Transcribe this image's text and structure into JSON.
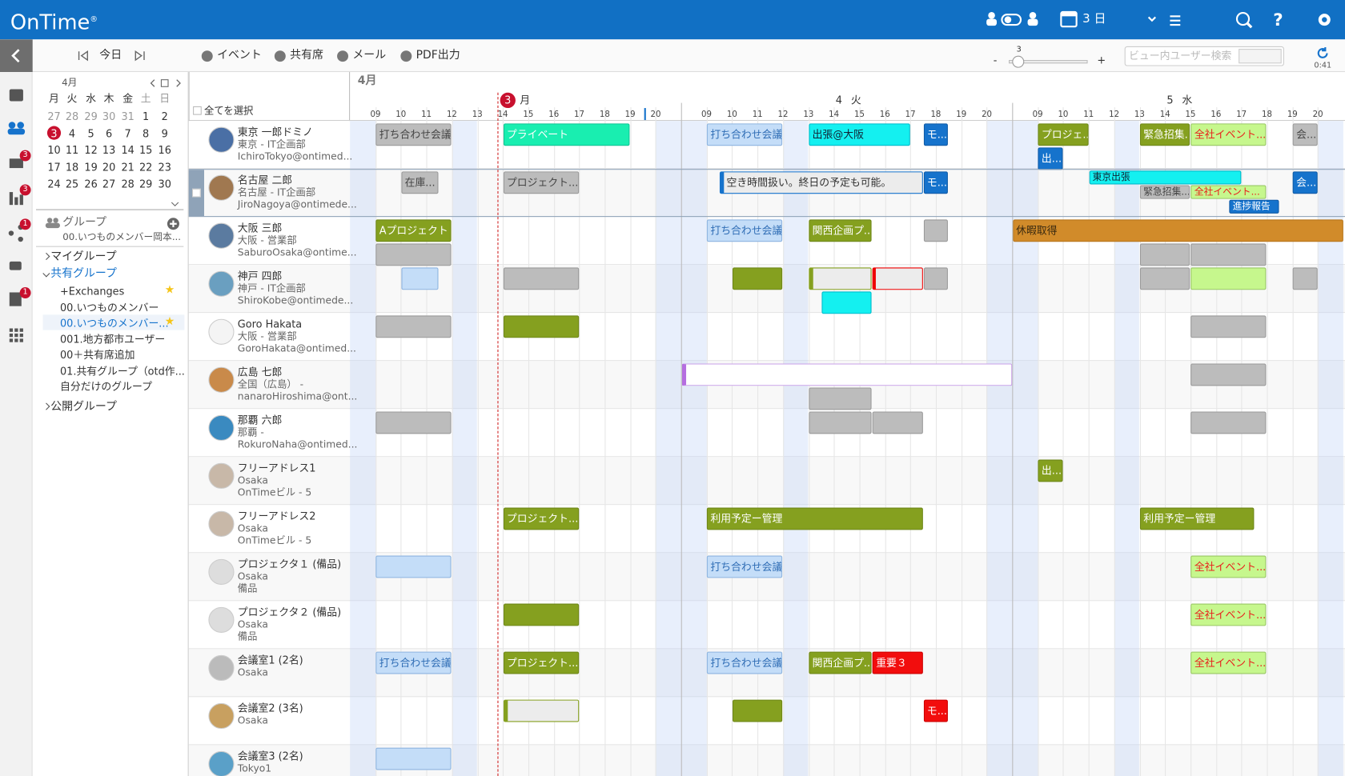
{
  "header": {
    "logo": "OnTime",
    "logo_mark": "®",
    "view": "3 日"
  },
  "toolbar": {
    "today": "今日",
    "buttons": [
      "イベント",
      "共有席",
      "メール",
      "PDF出力"
    ],
    "zoom": "3",
    "zoom_minus": "-",
    "zoom_plus": "+",
    "search_placeholder": "ビュー内ユーザー検索",
    "time": "0:41"
  },
  "rail_badges": [
    "3",
    "3",
    "1",
    "1"
  ],
  "mini_calendar": {
    "month": "4月",
    "today": "3",
    "weekdays": [
      "月",
      "火",
      "水",
      "木",
      "金",
      "土",
      "日"
    ],
    "weeks": [
      [
        "27",
        "28",
        "29",
        "30",
        "31",
        "1",
        "2"
      ],
      [
        "3",
        "4",
        "5",
        "6",
        "7",
        "8",
        "9"
      ],
      [
        "10",
        "11",
        "12",
        "13",
        "14",
        "15",
        "16"
      ],
      [
        "17",
        "18",
        "19",
        "20",
        "21",
        "22",
        "23"
      ],
      [
        "24",
        "25",
        "26",
        "27",
        "28",
        "29",
        "30"
      ]
    ]
  },
  "groups": {
    "title": "グループ",
    "current": "00.いつものメンバー岡本...",
    "sections": [
      {
        "label": "マイグループ",
        "open": false
      },
      {
        "label": "共有グループ",
        "open": true,
        "items": [
          {
            "label": "+Exchanges",
            "starred": true
          },
          {
            "label": "00.いつものメンバー",
            "starred": false
          },
          {
            "label": "00.いつものメンバー...",
            "starred": true,
            "selected": true
          },
          {
            "label": "001.地方都市ユーザー",
            "starred": false
          },
          {
            "label": "00＋共有席追加",
            "starred": false
          },
          {
            "label": "01.共有グループ（otd作...",
            "starred": false
          },
          {
            "label": "自分だけのグループ",
            "starred": false
          }
        ]
      },
      {
        "label": "公開グループ",
        "open": false
      }
    ]
  },
  "schedule": {
    "month": "4月",
    "select_all": "全てを選択",
    "days": [
      {
        "num": "3",
        "dow": "月",
        "today": true,
        "hours": [
          "09",
          "10",
          "11",
          "12",
          "13",
          "14",
          "15",
          "16",
          "17",
          "18",
          "19",
          "20"
        ]
      },
      {
        "num": "4",
        "dow": "火",
        "today": false,
        "hours": [
          "09",
          "10",
          "11",
          "12",
          "13",
          "14",
          "15",
          "16",
          "17",
          "18",
          "19",
          "20"
        ]
      },
      {
        "num": "5",
        "dow": "水",
        "today": false,
        "hours": [
          "09",
          "10",
          "11",
          "12",
          "13",
          "14",
          "15",
          "16",
          "17",
          "18",
          "19",
          "20"
        ]
      }
    ],
    "users": [
      {
        "name": "東京 一郎ドミノ",
        "lines": [
          "東京 - IT企画部",
          "IchiroTokyo@ontimed..."
        ],
        "events": [
          {
            "label": "打ち合わせ会議",
            "day": 0,
            "start": 9,
            "end": 12,
            "lane": 0,
            "style": "gray"
          },
          {
            "label": "プライベート",
            "day": 0,
            "start": 14,
            "end": 19,
            "lane": 0,
            "style": "mint"
          },
          {
            "label": "打ち合わせ会議",
            "day": 1,
            "start": 9,
            "end": 12,
            "lane": 0,
            "style": "lblue"
          },
          {
            "label": "出張@大阪",
            "day": 1,
            "start": 13,
            "end": 17,
            "lane": 0,
            "style": "cyan"
          },
          {
            "label": "モ...",
            "day": 1,
            "start": 17.5,
            "end": 18.5,
            "lane": 0,
            "style": "blue"
          },
          {
            "label": "プロジェ...",
            "day": 2,
            "start": 9,
            "end": 11,
            "lane": 0,
            "style": "green"
          },
          {
            "label": "出...",
            "day": 2,
            "start": 9,
            "end": 10,
            "lane": 1,
            "style": "blue"
          },
          {
            "label": "緊急招集...",
            "day": 2,
            "start": 13,
            "end": 15,
            "lane": 0,
            "style": "green"
          },
          {
            "label": "全社イベント...",
            "day": 2,
            "start": 15,
            "end": 18,
            "lane": 0,
            "style": "lgreen"
          },
          {
            "label": "会...",
            "day": 2,
            "start": 19,
            "end": 20,
            "lane": 0,
            "style": "gray"
          }
        ]
      },
      {
        "name": "名古屋 二郎",
        "lines": [
          "名古屋 - IT企画部",
          "JiroNagoya@ontimede..."
        ],
        "selected": true,
        "events": [
          {
            "label": "在庫...",
            "day": 0,
            "start": 10,
            "end": 11.5,
            "lane": 0,
            "style": "gray"
          },
          {
            "label": "プロジェクト...",
            "day": 0,
            "start": 14,
            "end": 17,
            "lane": 0,
            "style": "gray"
          },
          {
            "label": "空き時間扱い。終日の予定も可能。",
            "day": 1,
            "start": 9.5,
            "end": 17.5,
            "lane": 0,
            "style": "note"
          },
          {
            "label": "モ...",
            "day": 1,
            "start": 17.5,
            "end": 18.5,
            "lane": 0,
            "style": "blue"
          },
          {
            "label": "東京出張",
            "day": 2,
            "start": 11,
            "end": 17,
            "lane": 0,
            "style": "cyan",
            "small": true
          },
          {
            "label": "緊急招集...",
            "day": 2,
            "start": 13,
            "end": 15,
            "lane": 1,
            "style": "gray",
            "small": true
          },
          {
            "label": "全社イベント...",
            "day": 2,
            "start": 15,
            "end": 18,
            "lane": 1,
            "style": "lgreen",
            "small": true
          },
          {
            "label": "進捗報告",
            "day": 2,
            "start": 16.5,
            "end": 18.5,
            "lane": 2,
            "style": "blue",
            "small": true
          },
          {
            "label": "会...",
            "day": 2,
            "start": 19,
            "end": 20,
            "lane": 0,
            "style": "blue"
          }
        ]
      },
      {
        "name": "大阪 三郎",
        "lines": [
          "大阪 - 営業部",
          "SaburoOsaka@ontime..."
        ],
        "events": [
          {
            "label": "Aプロジェクト",
            "day": 0,
            "start": 9,
            "end": 12,
            "lane": 0,
            "style": "green"
          },
          {
            "day": 0,
            "start": 9,
            "end": 12,
            "lane": 1,
            "style": "gray"
          },
          {
            "label": "打ち合わせ会議",
            "day": 1,
            "start": 9,
            "end": 12,
            "lane": 0,
            "style": "lblue"
          },
          {
            "label": "関西企画プ...",
            "day": 1,
            "start": 13,
            "end": 15.5,
            "lane": 0,
            "style": "green"
          },
          {
            "day": 1,
            "start": 17.5,
            "end": 18.5,
            "lane": 0,
            "style": "gray"
          },
          {
            "label": "休暇取得",
            "day": 2,
            "start": 8,
            "end": 21,
            "lane": 0,
            "style": "orange"
          },
          {
            "day": 2,
            "start": 13,
            "end": 15,
            "lane": 1,
            "style": "gray"
          },
          {
            "day": 2,
            "start": 15,
            "end": 18,
            "lane": 1,
            "style": "gray"
          }
        ]
      },
      {
        "name": "神戸 四郎",
        "lines": [
          "神戸 - IT企画部",
          "ShiroKobe@ontimede..."
        ],
        "events": [
          {
            "day": 0,
            "start": 10,
            "end": 11.5,
            "lane": 0,
            "style": "lblue"
          },
          {
            "day": 0,
            "start": 14,
            "end": 17,
            "lane": 0,
            "style": "gray"
          },
          {
            "day": 1,
            "start": 10,
            "end": 12,
            "lane": 0,
            "style": "green"
          },
          {
            "day": 1,
            "start": 13,
            "end": 15.5,
            "lane": 0,
            "style": "pgreen"
          },
          {
            "day": 1,
            "start": 15.5,
            "end": 17.5,
            "lane": 0,
            "style": "pred"
          },
          {
            "day": 1,
            "start": 17.5,
            "end": 18.5,
            "lane": 0,
            "style": "gray"
          },
          {
            "day": 1,
            "start": 13.5,
            "end": 15.5,
            "lane": 1,
            "style": "cyan"
          },
          {
            "day": 2,
            "start": 13,
            "end": 15,
            "lane": 0,
            "style": "gray"
          },
          {
            "day": 2,
            "start": 15,
            "end": 18,
            "lane": 0,
            "style": "lgreen"
          },
          {
            "day": 2,
            "start": 19,
            "end": 20,
            "lane": 0,
            "style": "gray"
          }
        ]
      },
      {
        "name": "Goro Hakata",
        "lines": [
          "大阪 - 営業部",
          "GoroHakata@ontimed..."
        ],
        "events": [
          {
            "day": 0,
            "start": 9,
            "end": 12,
            "lane": 0,
            "style": "gray"
          },
          {
            "day": 0,
            "start": 14,
            "end": 17,
            "lane": 0,
            "style": "green"
          },
          {
            "day": 2,
            "start": 15,
            "end": 18,
            "lane": 0,
            "style": "gray"
          }
        ]
      },
      {
        "name": "広島 七郎",
        "lines": [
          "全国（広島） -",
          "nanaroHiroshima@ont..."
        ],
        "events": [
          {
            "day": 1,
            "start": 8,
            "end": 21,
            "lane": 0,
            "style": "purple"
          },
          {
            "day": 1,
            "start": 13,
            "end": 15.5,
            "lane": 1,
            "style": "gray"
          },
          {
            "day": 2,
            "start": 15,
            "end": 18,
            "lane": 0,
            "style": "gray"
          }
        ]
      },
      {
        "name": "那覇 六郎",
        "lines": [
          "那覇 -",
          "RokuroNaha@ontimed..."
        ],
        "events": [
          {
            "day": 0,
            "start": 9,
            "end": 12,
            "lane": 0,
            "style": "gray"
          },
          {
            "day": 1,
            "start": 13,
            "end": 15.5,
            "lane": 0,
            "style": "gray"
          },
          {
            "day": 1,
            "start": 15.5,
            "end": 17.5,
            "lane": 0,
            "style": "gray"
          },
          {
            "day": 2,
            "start": 15,
            "end": 18,
            "lane": 0,
            "style": "gray"
          }
        ]
      },
      {
        "name": "フリーアドレス1",
        "lines": [
          "Osaka",
          "OnTimeビル - 5"
        ],
        "events": [
          {
            "label": "出...",
            "day": 2,
            "start": 9,
            "end": 10,
            "lane": 0,
            "style": "green"
          }
        ]
      },
      {
        "name": "フリーアドレス2",
        "lines": [
          "Osaka",
          "OnTimeビル - 5"
        ],
        "events": [
          {
            "label": "プロジェクト...",
            "day": 0,
            "start": 14,
            "end": 17,
            "lane": 0,
            "style": "green"
          },
          {
            "label": "利用予定ー管理",
            "day": 1,
            "start": 9,
            "end": 17.5,
            "lane": 0,
            "style": "green"
          },
          {
            "label": "利用予定ー管理",
            "day": 2,
            "start": 13,
            "end": 17.5,
            "lane": 0,
            "style": "green"
          }
        ]
      },
      {
        "name": "プロジェクタ１ (備品)",
        "lines": [
          "Osaka",
          "備品"
        ],
        "events": [
          {
            "day": 0,
            "start": 9,
            "end": 12,
            "lane": 0,
            "style": "lblue"
          },
          {
            "label": "打ち合わせ会議",
            "day": 1,
            "start": 9,
            "end": 12,
            "lane": 0,
            "style": "lblue"
          },
          {
            "label": "全社イベント...",
            "day": 2,
            "start": 15,
            "end": 18,
            "lane": 0,
            "style": "lgreen"
          }
        ]
      },
      {
        "name": "プロジェクタ２ (備品)",
        "lines": [
          "Osaka",
          "備品"
        ],
        "events": [
          {
            "day": 0,
            "start": 14,
            "end": 17,
            "lane": 0,
            "style": "green"
          },
          {
            "label": "全社イベント...",
            "day": 2,
            "start": 15,
            "end": 18,
            "lane": 0,
            "style": "lgreen"
          }
        ]
      },
      {
        "name": "会議室1 (2名)",
        "lines": [
          "Osaka"
        ],
        "events": [
          {
            "label": "打ち合わせ会議",
            "day": 0,
            "start": 9,
            "end": 12,
            "lane": 0,
            "style": "lblue"
          },
          {
            "label": "プロジェクト...",
            "day": 0,
            "start": 14,
            "end": 17,
            "lane": 0,
            "style": "green"
          },
          {
            "label": "打ち合わせ会議",
            "day": 1,
            "start": 9,
            "end": 12,
            "lane": 0,
            "style": "lblue"
          },
          {
            "label": "関西企画プ...",
            "day": 1,
            "start": 13,
            "end": 15.5,
            "lane": 0,
            "style": "green"
          },
          {
            "label": "重要３",
            "day": 1,
            "start": 15.5,
            "end": 17.5,
            "lane": 0,
            "style": "red"
          },
          {
            "label": "全社イベント...",
            "day": 2,
            "start": 15,
            "end": 18,
            "lane": 0,
            "style": "lgreen"
          }
        ]
      },
      {
        "name": "会議室2 (3名)",
        "lines": [
          "Osaka"
        ],
        "events": [
          {
            "day": 0,
            "start": 14,
            "end": 17,
            "lane": 0,
            "style": "pgreen"
          },
          {
            "day": 1,
            "start": 10,
            "end": 12,
            "lane": 0,
            "style": "green"
          },
          {
            "label": "モ...",
            "day": 1,
            "start": 17.5,
            "end": 18.5,
            "lane": 0,
            "style": "red"
          }
        ]
      },
      {
        "name": "会議室3 (2名)",
        "lines": [
          "Tokyo1"
        ],
        "events": [
          {
            "day": 0,
            "start": 9,
            "end": 12,
            "lane": 0,
            "style": "lblue"
          }
        ]
      }
    ]
  }
}
